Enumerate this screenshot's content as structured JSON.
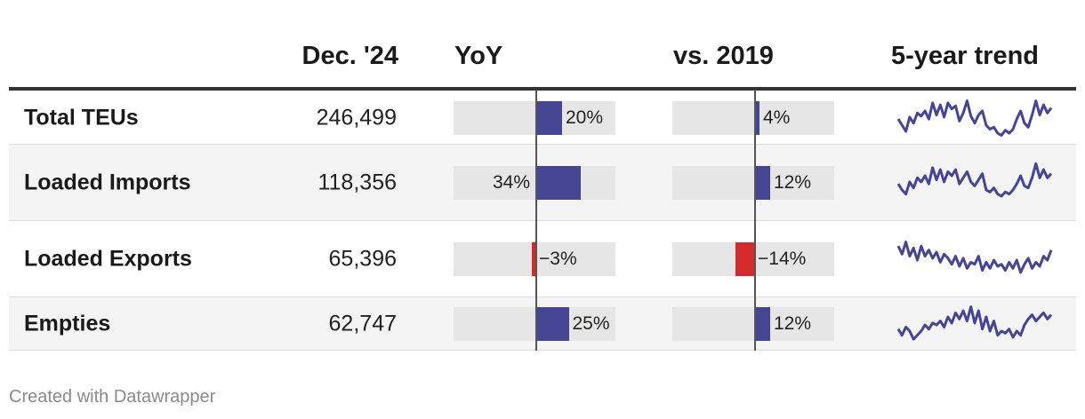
{
  "headers": {
    "dec": "Dec. '24",
    "yoy": "YoY",
    "vs2019": "vs. 2019",
    "trend": "5-year trend"
  },
  "colors": {
    "positive": "#454594",
    "negative": "#d42a2a",
    "sparkline": "#454594"
  },
  "footer": "Created with Datawrapper",
  "chart_data": {
    "type": "table",
    "columns": [
      "Dec. '24",
      "YoY",
      "vs. 2019",
      "5-year trend"
    ],
    "scale": {
      "yoy_domain": [
        -0.5,
        0.5
      ],
      "vs2019_domain": [
        -0.5,
        0.5
      ]
    },
    "rows": [
      {
        "label": "Total TEUs",
        "value": "246,499",
        "yoy": 0.2,
        "yoy_label": "20%",
        "vs2019": 0.04,
        "vs2019_label": "4%",
        "trend": [
          44,
          38,
          32,
          46,
          40,
          50,
          47,
          52,
          44,
          60,
          48,
          58,
          46,
          60,
          54,
          57,
          42,
          50,
          62,
          47,
          40,
          48,
          52,
          38,
          34,
          36,
          30,
          28,
          33,
          30,
          34,
          44,
          52,
          40,
          36,
          48,
          62,
          48,
          58,
          50,
          55
        ]
      },
      {
        "label": "Loaded Imports",
        "value": "118,356",
        "yoy": 0.34,
        "yoy_label": "34%",
        "vs2019": 0.12,
        "vs2019_label": "12%",
        "trend": [
          44,
          38,
          34,
          46,
          40,
          50,
          46,
          52,
          44,
          60,
          48,
          58,
          46,
          56,
          52,
          58,
          44,
          50,
          56,
          46,
          42,
          48,
          54,
          38,
          36,
          40,
          34,
          32,
          36,
          34,
          38,
          44,
          52,
          42,
          40,
          50,
          64,
          50,
          58,
          50,
          54
        ]
      },
      {
        "label": "Loaded Exports",
        "value": "65,396",
        "yoy": -0.03,
        "yoy_label": "−3%",
        "vs2019": -0.14,
        "vs2019_label": "−14%",
        "trend": [
          58,
          50,
          62,
          48,
          56,
          44,
          58,
          48,
          54,
          46,
          52,
          42,
          50,
          46,
          40,
          48,
          38,
          46,
          36,
          42,
          40,
          48,
          34,
          42,
          36,
          44,
          38,
          40,
          34,
          42,
          36,
          44,
          32,
          40,
          46,
          36,
          42,
          38,
          48,
          44,
          54
        ]
      },
      {
        "label": "Empties",
        "value": "62,747",
        "yoy": 0.25,
        "yoy_label": "25%",
        "vs2019": 0.12,
        "vs2019_label": "12%",
        "trend": [
          40,
          34,
          42,
          38,
          30,
          34,
          38,
          44,
          40,
          46,
          44,
          48,
          42,
          52,
          46,
          56,
          50,
          58,
          48,
          62,
          46,
          58,
          40,
          52,
          38,
          48,
          34,
          38,
          36,
          40,
          32,
          38,
          34,
          44,
          50,
          54,
          48,
          52,
          56,
          50,
          54
        ]
      }
    ]
  }
}
